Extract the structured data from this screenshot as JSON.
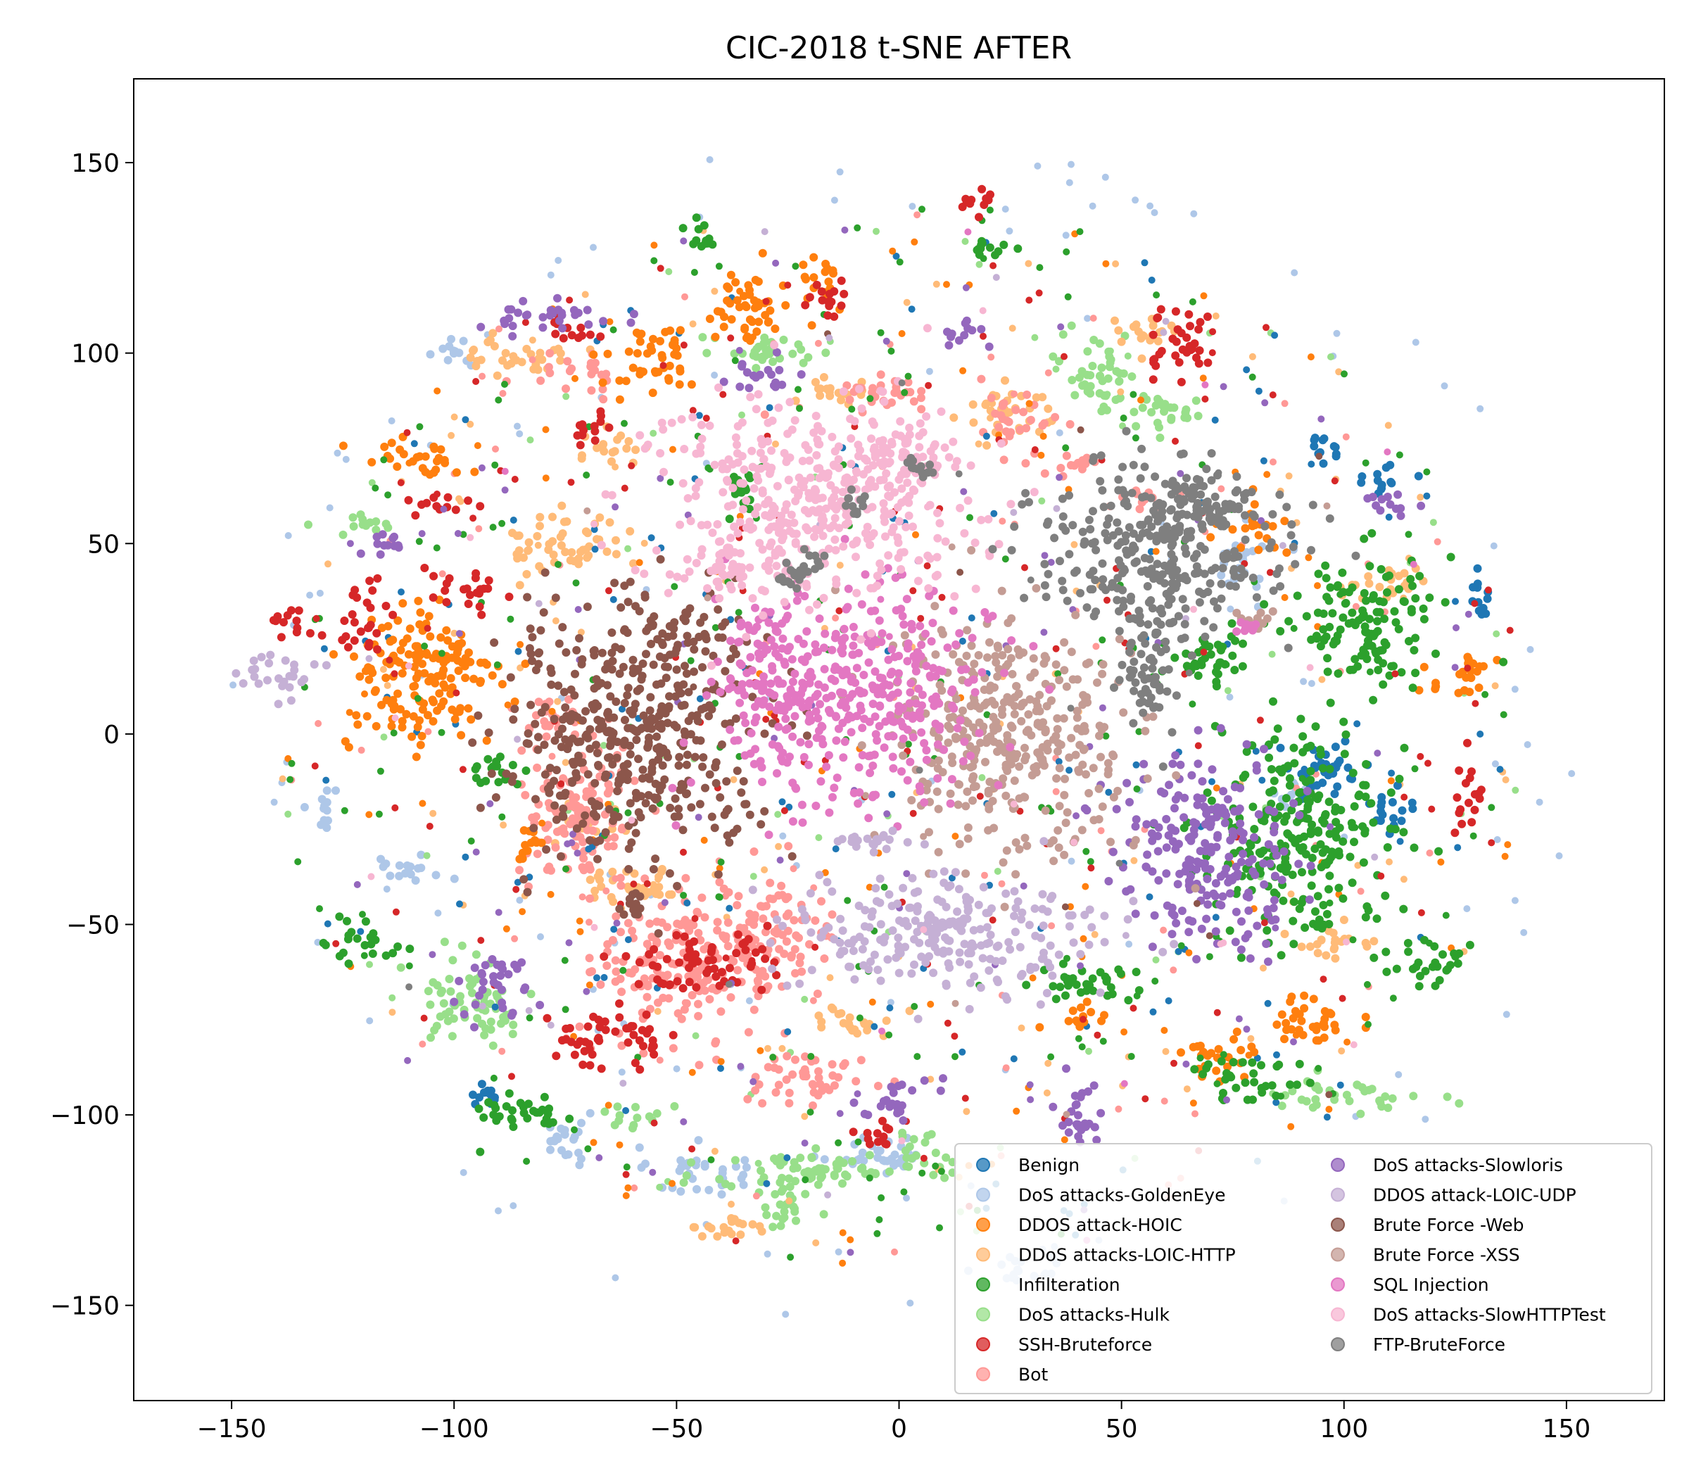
{
  "chart_data": {
    "type": "scatter",
    "title": "CIC-2018 t-SNE AFTER",
    "xlabel": "",
    "ylabel": "",
    "xlim": [
      -172,
      172
    ],
    "ylim": [
      -175,
      172
    ],
    "xticks": [
      -150,
      -100,
      -50,
      0,
      50,
      100,
      150
    ],
    "yticks": [
      150,
      100,
      50,
      0,
      -50,
      -100,
      -150
    ],
    "xtick_labels": [
      "−150",
      "−100",
      "−50",
      "0",
      "50",
      "100",
      "150"
    ],
    "ytick_labels": [
      "150",
      "100",
      "50",
      "0",
      "−50",
      "−100",
      "−150"
    ],
    "grid": false,
    "legend_position": "lower-right",
    "series": [
      {
        "name": "Benign",
        "color": "#1f77b4",
        "clusters": [
          [
            95,
            75,
            5,
            4
          ],
          [
            108,
            67,
            6,
            4
          ],
          [
            95,
            -10,
            8,
            8
          ],
          [
            110,
            -20,
            6,
            5
          ],
          [
            131,
            35,
            3,
            6
          ],
          [
            -93,
            -95,
            3,
            3
          ]
        ],
        "scatter_count": 140
      },
      {
        "name": "DoS attacks-GoldenEye",
        "color": "#aec7e8",
        "clusters": [
          [
            -5,
            -110,
            12,
            5
          ],
          [
            -45,
            -115,
            10,
            6
          ],
          [
            -75,
            -107,
            5,
            8
          ],
          [
            -110,
            -35,
            10,
            3
          ],
          [
            -130,
            -20,
            3,
            6
          ],
          [
            -100,
            100,
            4,
            5
          ],
          [
            78,
            45,
            6,
            8
          ],
          [
            88,
            -15,
            6,
            4
          ],
          [
            28,
            -140,
            8,
            4
          ]
        ],
        "scatter_count": 120
      },
      {
        "name": "DDOS attack-HOIC",
        "color": "#ff7f0e",
        "clusters": [
          [
            -107,
            14,
            16,
            18
          ],
          [
            -110,
            72,
            10,
            5
          ],
          [
            -55,
            98,
            10,
            8
          ],
          [
            -35,
            112,
            8,
            10
          ],
          [
            -18,
            118,
            6,
            6
          ],
          [
            80,
            55,
            6,
            6
          ],
          [
            72,
            -85,
            8,
            6
          ],
          [
            92,
            -75,
            10,
            6
          ],
          [
            -84,
            -30,
            3,
            6
          ],
          [
            40,
            -75,
            8,
            3
          ],
          [
            128,
            15,
            8,
            5
          ]
        ],
        "scatter_count": 120
      },
      {
        "name": "DDoS attacks-LOIC-HTTP",
        "color": "#ffbb78",
        "clusters": [
          [
            -75,
            50,
            12,
            8
          ],
          [
            -85,
            100,
            10,
            6
          ],
          [
            -60,
            -40,
            14,
            4
          ],
          [
            -10,
            -75,
            10,
            4
          ],
          [
            -65,
            75,
            8,
            4
          ],
          [
            25,
            85,
            10,
            6
          ],
          [
            55,
            105,
            8,
            5
          ],
          [
            98,
            -55,
            10,
            4
          ],
          [
            110,
            40,
            10,
            4
          ],
          [
            -70,
            -25,
            6,
            5
          ],
          [
            -40,
            -130,
            12,
            3
          ],
          [
            -15,
            90,
            8,
            4
          ]
        ],
        "scatter_count": 120
      },
      {
        "name": "Infilteration",
        "color": "#2ca02c",
        "clusters": [
          [
            -90,
            -10,
            6,
            5
          ],
          [
            -120,
            -55,
            8,
            5
          ],
          [
            90,
            -25,
            18,
            25
          ],
          [
            70,
            20,
            10,
            8
          ],
          [
            118,
            -60,
            10,
            5
          ],
          [
            40,
            -65,
            10,
            6
          ],
          [
            -35,
            65,
            4,
            8
          ],
          [
            78,
            -90,
            10,
            6
          ],
          [
            -85,
            -100,
            10,
            6
          ],
          [
            105,
            30,
            15,
            15
          ],
          [
            20,
            128,
            6,
            3
          ],
          [
            -45,
            130,
            3,
            4
          ]
        ],
        "scatter_count": 220
      },
      {
        "name": "DoS attacks-Hulk",
        "color": "#98df8a",
        "clusters": [
          [
            -20,
            -115,
            20,
            6
          ],
          [
            -95,
            -70,
            12,
            10
          ],
          [
            -30,
            100,
            14,
            4
          ],
          [
            45,
            95,
            8,
            10
          ],
          [
            100,
            -95,
            16,
            4
          ],
          [
            -120,
            55,
            8,
            3
          ],
          [
            60,
            85,
            12,
            4
          ],
          [
            -60,
            -100,
            6,
            4
          ],
          [
            -25,
            -125,
            8,
            4
          ],
          [
            5,
            -110,
            6,
            6
          ]
        ],
        "scatter_count": 70
      },
      {
        "name": "SSH-Bruteforce",
        "color": "#d62728",
        "clusters": [
          [
            -45,
            -60,
            14,
            8
          ],
          [
            -65,
            -80,
            13,
            7
          ],
          [
            62,
            103,
            8,
            8
          ],
          [
            128,
            -15,
            3,
            10
          ],
          [
            -98,
            38,
            8,
            5
          ],
          [
            -102,
            60,
            6,
            3
          ],
          [
            -137,
            30,
            4,
            3
          ],
          [
            -14,
            115,
            6,
            5
          ],
          [
            -73,
            105,
            5,
            4
          ],
          [
            18,
            140,
            4,
            3
          ],
          [
            -70,
            80,
            6,
            4
          ],
          [
            -120,
            30,
            6,
            8
          ],
          [
            -5,
            -105,
            4,
            4
          ]
        ],
        "scatter_count": 150
      },
      {
        "name": "Bot",
        "color": "#ff9896",
        "clusters": [
          [
            -50,
            -60,
            16,
            18
          ],
          [
            -72,
            -20,
            12,
            18
          ],
          [
            -30,
            -55,
            14,
            14
          ],
          [
            -20,
            -90,
            14,
            6
          ],
          [
            0,
            90,
            14,
            4
          ],
          [
            -70,
            95,
            8,
            5
          ],
          [
            25,
            80,
            8,
            6
          ],
          [
            -80,
            5,
            6,
            6
          ],
          [
            40,
            70,
            8,
            3
          ],
          [
            55,
            62,
            6,
            3
          ]
        ],
        "scatter_count": 90
      },
      {
        "name": "DoS attacks-Slowloris",
        "color": "#9467bd",
        "clusters": [
          [
            70,
            -30,
            18,
            22
          ],
          [
            40,
            -100,
            6,
            8
          ],
          [
            -90,
            -65,
            8,
            8
          ],
          [
            -80,
            110,
            14,
            4
          ],
          [
            -30,
            95,
            8,
            4
          ],
          [
            15,
            105,
            4,
            4
          ],
          [
            0,
            -95,
            8,
            5
          ],
          [
            110,
            60,
            6,
            3
          ],
          [
            -115,
            50,
            4,
            4
          ]
        ],
        "scatter_count": 90
      },
      {
        "name": "DDOS attack-LOIC-UDP",
        "color": "#c5b0d5",
        "clusters": [
          [
            10,
            -52,
            32,
            14
          ],
          [
            -5,
            -28,
            12,
            3
          ],
          [
            -140,
            15,
            8,
            6
          ]
        ],
        "scatter_count": 20
      },
      {
        "name": "Brute Force -Web",
        "color": "#8c564b",
        "clusters": [
          [
            -60,
            0,
            28,
            28
          ],
          [
            -50,
            25,
            12,
            7
          ],
          [
            -60,
            -45,
            3,
            3
          ]
        ],
        "scatter_count": 10
      },
      {
        "name": "Brute Force -XSS",
        "color": "#c49c94",
        "clusters": [
          [
            25,
            0,
            24,
            28
          ],
          [
            80,
            30,
            3,
            3
          ]
        ],
        "scatter_count": 10
      },
      {
        "name": "SQL Injection",
        "color": "#e377c2",
        "clusters": [
          [
            -10,
            10,
            28,
            26
          ],
          [
            -30,
            20,
            6,
            14
          ],
          [
            78,
            28,
            2,
            2
          ]
        ],
        "scatter_count": 10
      },
      {
        "name": "DoS attacks-SlowHTTPTest",
        "color": "#f7b6d2",
        "clusters": [
          [
            -20,
            60,
            32,
            24
          ],
          [
            -40,
            42,
            12,
            6
          ],
          [
            0,
            72,
            10,
            8
          ]
        ],
        "scatter_count": 20
      },
      {
        "name": "FTP-BruteForce",
        "color": "#7f7f7f",
        "clusters": [
          [
            60,
            50,
            28,
            18
          ],
          [
            55,
            20,
            8,
            20
          ],
          [
            65,
            60,
            14,
            8
          ],
          [
            -10,
            60,
            3,
            3
          ],
          [
            -20,
            45,
            3,
            3
          ],
          [
            5,
            70,
            3,
            3
          ],
          [
            -25,
            40,
            3,
            3
          ]
        ],
        "scatter_count": 10
      }
    ]
  }
}
